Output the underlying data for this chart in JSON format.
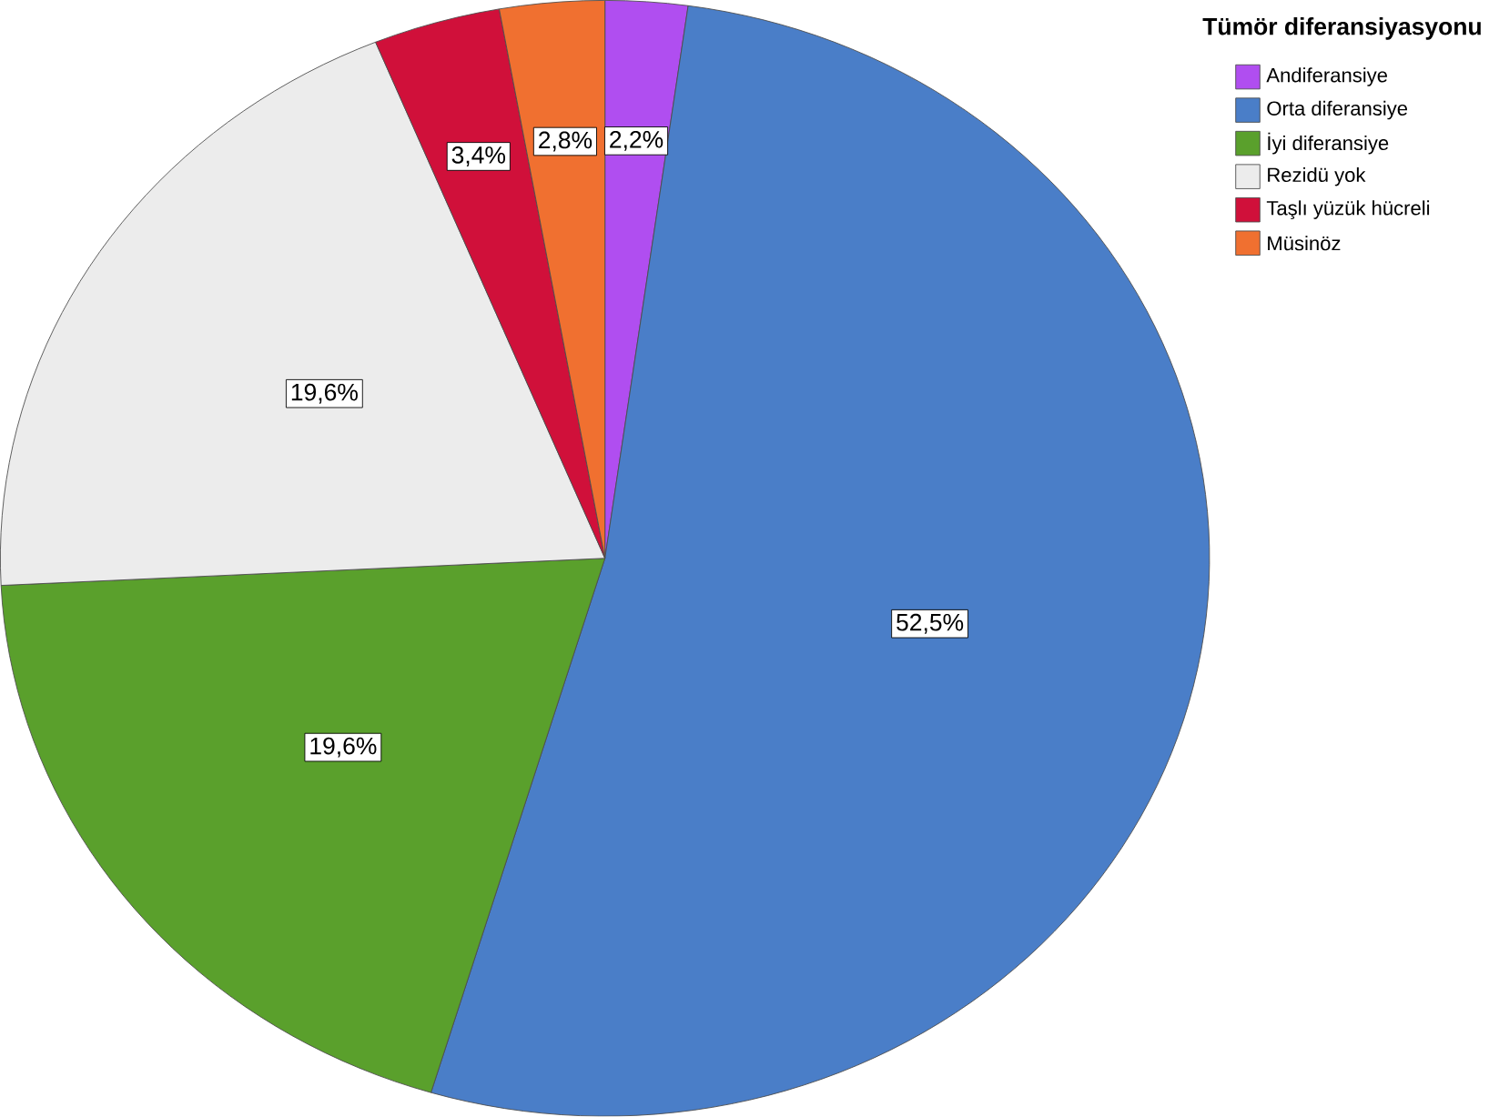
{
  "chart_data": {
    "type": "pie",
    "legend_title": "Tümör diferansiyasyonu",
    "categories": [
      "Andiferansiye",
      "Orta diferansiye",
      "İyi diferansiye",
      "Rezidü yok",
      "Taşlı yüzük hücreli",
      "Müsinöz"
    ],
    "values": [
      2.2,
      52.5,
      19.6,
      19.6,
      3.4,
      2.8
    ],
    "value_labels": [
      "2,2%",
      "52,5%",
      "19,6%",
      "19,6%",
      "3,4%",
      "2,8%"
    ],
    "colors": [
      "#b04ef0",
      "#4a7ec8",
      "#5aa02c",
      "#ececec",
      "#d0103a",
      "#f07030"
    ],
    "legend": "top right"
  }
}
